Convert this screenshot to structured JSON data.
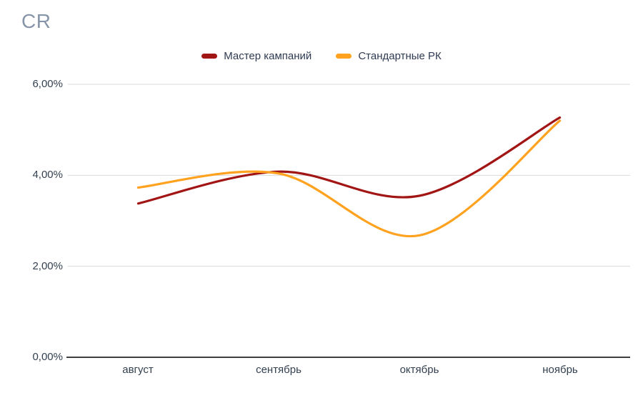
{
  "chart_data": {
    "type": "line",
    "title": "CR",
    "categories": [
      "август",
      "сентябрь",
      "октябрь",
      "ноябрь"
    ],
    "series": [
      {
        "name": "Мастер кампаний",
        "color": "#A21515",
        "values": [
          3.38,
          4.08,
          3.55,
          5.27
        ]
      },
      {
        "name": "Стандартные РК",
        "color": "#FFA21F",
        "values": [
          3.73,
          4.04,
          2.68,
          5.2
        ]
      }
    ],
    "ylim": [
      0,
      6
    ],
    "yticks": [
      {
        "value": 0,
        "label": "0,00%"
      },
      {
        "value": 2,
        "label": "2,00%"
      },
      {
        "value": 4,
        "label": "4,00%"
      },
      {
        "value": 6,
        "label": "6,00%"
      }
    ],
    "value_format": "percent",
    "grid": "horizontal",
    "legend_position": "top-center",
    "colors": {
      "grid": "#D9D9D9",
      "axis": "#3f3f3f",
      "tick_text": "#33404f",
      "title_text": "#8795a9"
    }
  }
}
